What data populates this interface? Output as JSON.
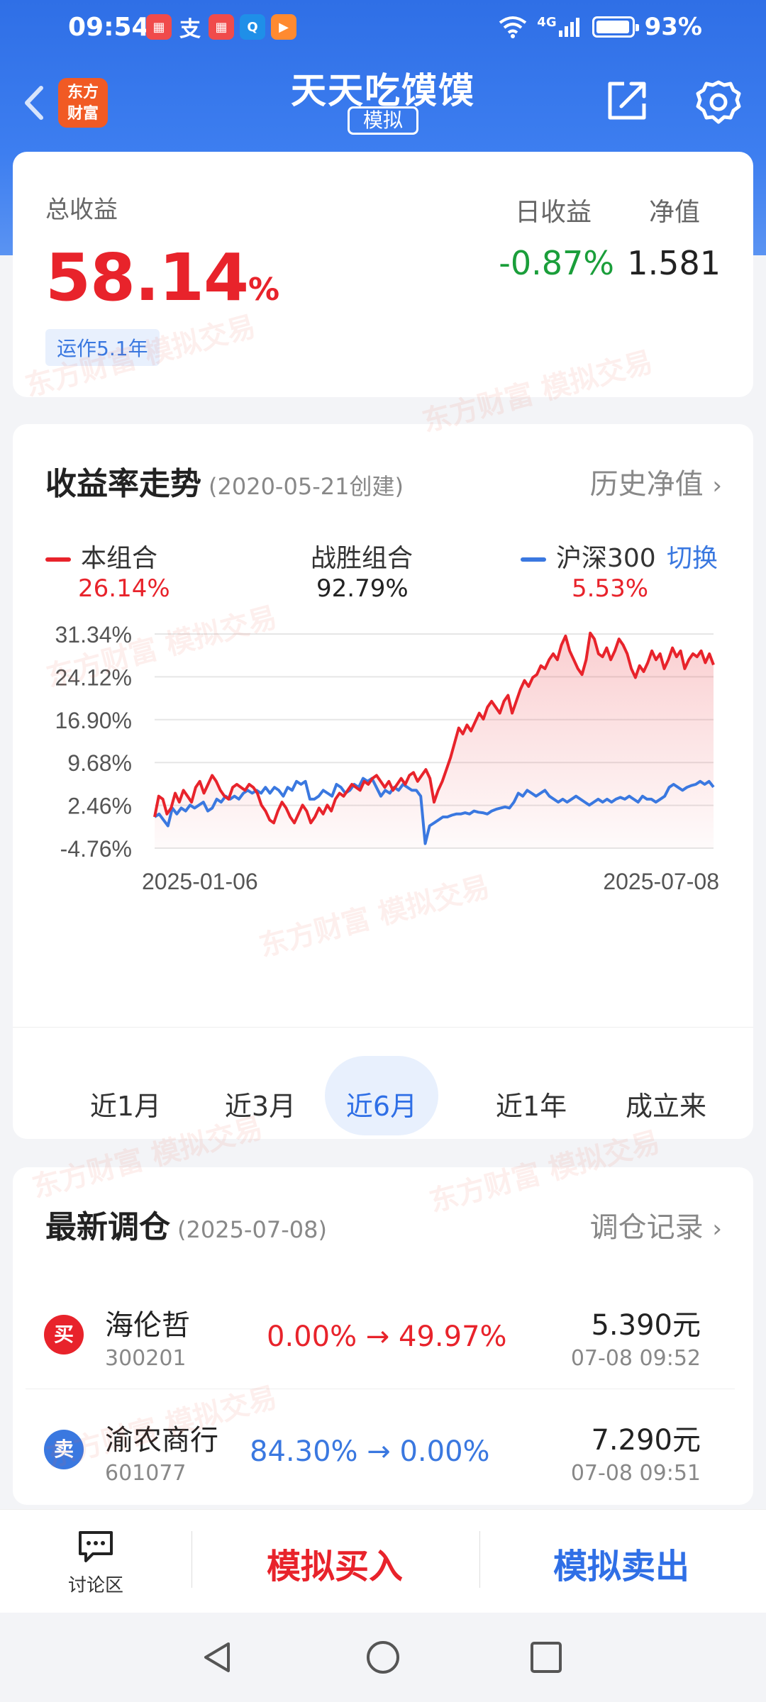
{
  "status_bar": {
    "time": "09:54",
    "network": "4G",
    "battery": "93%"
  },
  "header": {
    "logo_line1": "东方",
    "logo_line2": "财富",
    "title": "天天吃馍馍",
    "tag": "模拟"
  },
  "summary": {
    "total_label": "总收益",
    "total_value": "58.14",
    "total_unit": "%",
    "run_tag": "运作5.1年",
    "day_label": "日收益",
    "day_value": "-0.87%",
    "nv_label": "净值",
    "nv_value": "1.581"
  },
  "trend": {
    "title": "收益率走势",
    "subtitle": "(2020-05-21创建)",
    "history_link": "历史净值",
    "legend": {
      "mine_label": "本组合",
      "mine_value": "26.14%",
      "beat_label": "战胜组合",
      "beat_value": "92.79%",
      "index_label": "沪深300",
      "index_value": "5.53%",
      "switch": "切换"
    },
    "ranges": [
      "近1月",
      "近3月",
      "近6月",
      "近1年",
      "成立来"
    ],
    "active_range": "近6月"
  },
  "chart_data": {
    "type": "line",
    "x_start": "2025-01-06",
    "x_end": "2025-07-08",
    "y_ticks": [
      "31.34%",
      "24.12%",
      "16.90%",
      "9.68%",
      "2.46%",
      "-4.76%"
    ],
    "ylim": [
      -4.76,
      31.34
    ],
    "series": [
      {
        "name": "本组合",
        "color": "#e8232b",
        "values": [
          0.5,
          4.0,
          3.5,
          1.0,
          2.0,
          4.5,
          3.0,
          5.0,
          4.0,
          3.0,
          5.5,
          6.5,
          4.5,
          6.0,
          7.5,
          6.5,
          5.0,
          4.0,
          3.5,
          5.5,
          6.0,
          5.5,
          5.0,
          6.0,
          5.5,
          4.5,
          2.5,
          1.5,
          0.0,
          -0.5,
          1.5,
          3.0,
          2.0,
          0.5,
          -0.5,
          1.0,
          2.5,
          1.5,
          -0.5,
          0.5,
          2.0,
          1.0,
          2.5,
          1.5,
          3.5,
          4.5,
          4.0,
          5.0,
          6.0,
          5.5,
          5.0,
          6.5,
          6.0,
          7.0,
          7.5,
          6.5,
          5.5,
          6.5,
          5.0,
          6.0,
          7.0,
          6.0,
          7.5,
          8.0,
          6.5,
          7.5,
          8.5,
          7.0,
          3.0,
          5.0,
          6.5,
          8.5,
          10.5,
          13.0,
          15.5,
          14.5,
          16.0,
          15.0,
          16.5,
          18.0,
          17.0,
          19.0,
          20.0,
          19.0,
          18.0,
          20.0,
          21.0,
          18.0,
          20.0,
          22.0,
          23.5,
          22.5,
          24.0,
          24.5,
          26.0,
          25.5,
          27.0,
          28.0,
          27.0,
          29.5,
          31.0,
          28.5,
          27.0,
          25.5,
          24.5,
          27.0,
          31.5,
          30.5,
          28.0,
          27.5,
          29.0,
          27.0,
          28.5,
          30.5,
          29.5,
          28.0,
          25.5,
          24.0,
          26.0,
          25.0,
          26.5,
          28.5,
          27.0,
          28.0,
          25.5,
          27.0,
          29.0,
          27.5,
          28.5,
          25.5,
          27.0,
          28.0,
          27.5,
          28.5,
          26.5,
          28.0,
          26.14
        ]
      },
      {
        "name": "沪深300",
        "color": "#3a78e0",
        "values": [
          0.5,
          1.0,
          0.0,
          -1.0,
          2.0,
          1.0,
          2.0,
          1.5,
          2.5,
          2.0,
          2.5,
          3.0,
          1.5,
          2.0,
          3.5,
          3.0,
          4.0,
          3.5,
          4.0,
          3.5,
          4.5,
          5.0,
          4.5,
          5.0,
          4.5,
          5.5,
          4.5,
          5.5,
          5.0,
          4.0,
          5.5,
          5.0,
          6.5,
          6.0,
          6.5,
          3.5,
          3.5,
          4.0,
          5.0,
          4.5,
          4.0,
          6.0,
          5.5,
          4.5,
          5.0,
          6.0,
          5.5,
          7.0,
          6.5,
          7.0,
          5.5,
          4.0,
          5.0,
          4.5,
          5.5,
          5.0,
          6.0,
          5.5,
          5.0,
          5.0,
          4.0,
          -4.0,
          -1.0,
          -0.5,
          0.0,
          0.5,
          0.5,
          0.8,
          1.0,
          1.0,
          1.2,
          1.0,
          1.5,
          1.3,
          1.2,
          1.0,
          1.5,
          1.8,
          2.0,
          2.2,
          2.0,
          3.0,
          4.5,
          4.0,
          5.0,
          4.5,
          4.0,
          4.5,
          5.0,
          4.0,
          3.5,
          3.0,
          3.5,
          3.0,
          3.5,
          4.0,
          3.5,
          3.0,
          2.5,
          3.0,
          3.5,
          3.0,
          3.5,
          3.0,
          3.5,
          3.8,
          3.5,
          4.0,
          3.5,
          3.0,
          4.0,
          3.5,
          3.5,
          3.0,
          3.5,
          4.0,
          5.5,
          6.0,
          5.5,
          5.0,
          5.5,
          5.8,
          6.0,
          6.5,
          6.0,
          6.5,
          5.53
        ]
      }
    ]
  },
  "trades": {
    "title": "最新调仓",
    "subtitle": "(2025-07-08)",
    "link": "调仓记录",
    "rows": [
      {
        "side": "买",
        "side_color": "#e8232b",
        "name": "海伦哲",
        "code": "300201",
        "change": "0.00% → 49.97%",
        "change_color": "#e8232b",
        "price": "5.390元",
        "time": "07-08  09:52"
      },
      {
        "side": "卖",
        "side_color": "#3a78e0",
        "name": "渝农商行",
        "code": "601077",
        "change": "84.30% → 0.00%",
        "change_color": "#3a78e0",
        "price": "7.290元",
        "time": "07-08  09:51"
      }
    ]
  },
  "bottom_bar": {
    "discussion": "讨论区",
    "buy": "模拟买入",
    "sell": "模拟卖出"
  },
  "watermark": "东方财富 模拟交易"
}
